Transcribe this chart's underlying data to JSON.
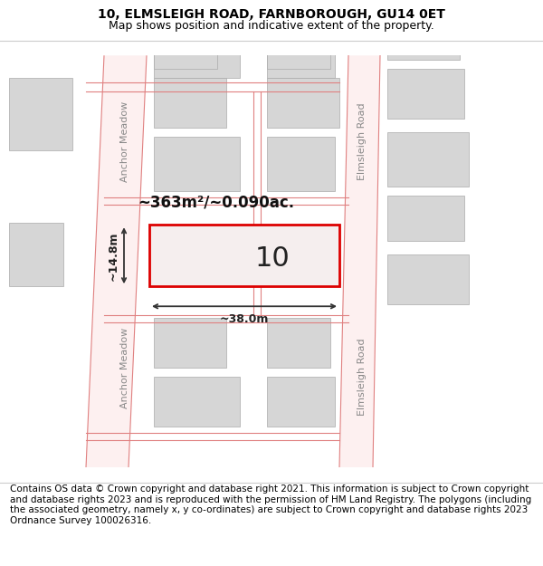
{
  "title": "10, ELMSLEIGH ROAD, FARNBOROUGH, GU14 0ET",
  "subtitle": "Map shows position and indicative extent of the property.",
  "footer": "Contains OS data © Crown copyright and database right 2021. This information is subject to Crown copyright and database rights 2023 and is reproduced with the permission of HM Land Registry. The polygons (including the associated geometry, namely x, y co-ordinates) are subject to Crown copyright and database rights 2023 Ordnance Survey 100026316.",
  "map_bg": "#ffffff",
  "road_line_color": "#e08080",
  "building_fill": "#d6d6d6",
  "building_edge": "#aaaaaa",
  "highlight_fill": "#f5eeee",
  "highlight_edge": "#dd0000",
  "highlight_lw": 2.0,
  "label_number": "10",
  "area_label": "~363m²/~0.090ac.",
  "dim_width": "~38.0m",
  "dim_height": "~14.8m",
  "road1_label": "Anchor Meadow",
  "road2_label": "Elmsleigh Road",
  "road3_label": "Elmsleigh Road",
  "title_fontsize": 10,
  "subtitle_fontsize": 9,
  "footer_fontsize": 7.5
}
